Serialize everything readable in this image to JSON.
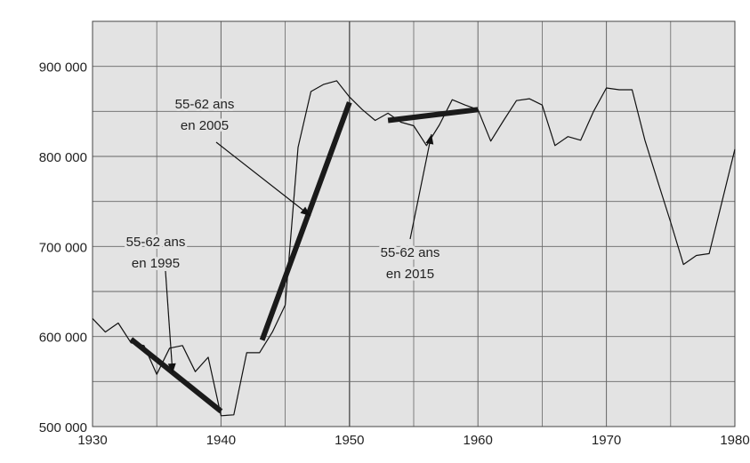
{
  "chart_data": {
    "type": "line",
    "title": "",
    "xlabel": "",
    "ylabel": "",
    "xlim": [
      1930,
      1980
    ],
    "ylim": [
      500000,
      950000
    ],
    "x_ticks": [
      1930,
      1940,
      1950,
      1960,
      1970,
      1980
    ],
    "x_tick_labels": [
      "1930",
      "1940",
      "1950",
      "1960",
      "1970",
      "1980"
    ],
    "y_ticks": [
      500000,
      600000,
      700000,
      800000,
      900000
    ],
    "y_tick_labels": [
      "500 000",
      "600 000",
      "700 000",
      "800 000",
      "900 000"
    ],
    "grid": true,
    "colors": {
      "background": "#e3e3e3",
      "grid": "#666666",
      "line": "#111111",
      "highlight": "#1a1a1a"
    },
    "series": [
      {
        "x": [
          1930,
          1931,
          1932,
          1933,
          1934,
          1935,
          1936,
          1937,
          1938,
          1939,
          1940,
          1941,
          1942,
          1943,
          1944,
          1945,
          1946,
          1947,
          1948,
          1949,
          1950,
          1951,
          1952,
          1953,
          1954,
          1955,
          1956,
          1957,
          1958,
          1959,
          1960,
          1961,
          1962,
          1963,
          1964,
          1965,
          1966,
          1967,
          1968,
          1969,
          1970,
          1971,
          1972,
          1973,
          1974,
          1975,
          1976,
          1977,
          1978,
          1979,
          1980
        ],
        "values": [
          620000,
          605000,
          615000,
          593000,
          590000,
          558000,
          587000,
          590000,
          561000,
          577000,
          512000,
          513000,
          582000,
          582000,
          605000,
          635000,
          810000,
          872000,
          880000,
          884000,
          866000,
          852000,
          840000,
          848000,
          838000,
          834000,
          812000,
          835000,
          863000,
          857000,
          852000,
          817000,
          840000,
          862000,
          864000,
          857000,
          812000,
          822000,
          818000,
          850000,
          876000,
          874000,
          874000,
          818000,
          772000,
          727000,
          680000,
          690000,
          692000,
          750000,
          808000
        ]
      }
    ],
    "highlight_segments": [
      {
        "x": [
          1933,
          1940
        ],
        "values": [
          597000,
          517000
        ]
      },
      {
        "x": [
          1943.2,
          1950
        ],
        "values": [
          596000,
          860000
        ]
      },
      {
        "x": [
          1953,
          1960
        ],
        "values": [
          840000,
          852000
        ]
      }
    ],
    "annotations": [
      {
        "lines": [
          "55-62 ans",
          "en 1995"
        ]
      },
      {
        "lines": [
          "55-62 ans",
          "en 2005"
        ]
      },
      {
        "lines": [
          "55-62 ans",
          "en 2015"
        ]
      }
    ]
  }
}
